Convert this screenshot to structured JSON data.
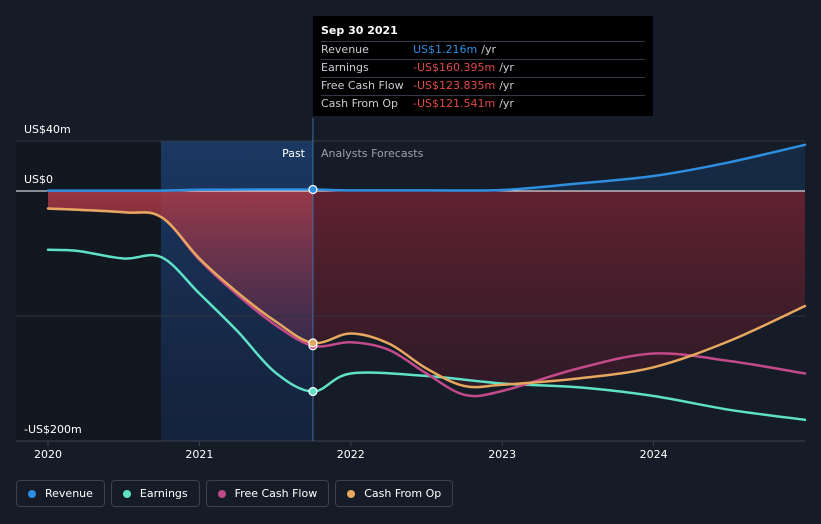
{
  "chart_data": {
    "type": "line",
    "y_axis": {
      "top_label": "US$40m",
      "zero_label": "US$0",
      "bottom_label": "-US$200m",
      "ylim": [
        -200,
        40
      ]
    },
    "x_axis": {
      "ticks": [
        "2020",
        "2021",
        "2022",
        "2023",
        "2024"
      ],
      "xlim": [
        2020.0,
        2025.0
      ]
    },
    "period_labels": {
      "past": "Past",
      "forecast": "Analysts Forecasts"
    },
    "past_divider_x": 2021.75,
    "series": [
      {
        "name": "Revenue",
        "color": "#2e8ee0",
        "points": [
          [
            2020.0,
            0.3
          ],
          [
            2020.75,
            0.3
          ],
          [
            2021.0,
            1.0
          ],
          [
            2021.5,
            1.2
          ],
          [
            2021.75,
            1.2
          ],
          [
            2022.0,
            0.5
          ],
          [
            2022.5,
            0.5
          ],
          [
            2023.0,
            0.8
          ],
          [
            2023.5,
            6.0
          ],
          [
            2024.0,
            12.0
          ],
          [
            2024.5,
            23.0
          ],
          [
            2025.0,
            37.0
          ]
        ]
      },
      {
        "name": "Earnings",
        "color": "#5ee1c7",
        "points": [
          [
            2020.0,
            -47.0
          ],
          [
            2020.2,
            -48.0
          ],
          [
            2020.5,
            -54.0
          ],
          [
            2020.75,
            -53.0
          ],
          [
            2021.0,
            -82.0
          ],
          [
            2021.25,
            -112.0
          ],
          [
            2021.5,
            -145.0
          ],
          [
            2021.75,
            -160.4
          ],
          [
            2022.0,
            -146.0
          ],
          [
            2022.5,
            -148.0
          ],
          [
            2023.0,
            -154.0
          ],
          [
            2023.5,
            -157.0
          ],
          [
            2024.0,
            -164.0
          ],
          [
            2024.5,
            -175.0
          ],
          [
            2025.0,
            -183.0
          ]
        ]
      },
      {
        "name": "Free Cash Flow",
        "color": "#c24a89",
        "points": [
          [
            2020.0,
            -14.0
          ],
          [
            2020.5,
            -17.0
          ],
          [
            2020.75,
            -21.0
          ],
          [
            2021.0,
            -55.0
          ],
          [
            2021.25,
            -83.0
          ],
          [
            2021.5,
            -107.0
          ],
          [
            2021.75,
            -123.8
          ],
          [
            2022.0,
            -121.0
          ],
          [
            2022.25,
            -127.0
          ],
          [
            2022.5,
            -146.0
          ],
          [
            2022.75,
            -163.0
          ],
          [
            2023.0,
            -160.0
          ],
          [
            2023.5,
            -142.0
          ],
          [
            2024.0,
            -130.0
          ],
          [
            2024.5,
            -136.0
          ],
          [
            2025.0,
            -146.0
          ]
        ]
      },
      {
        "name": "Cash From Op",
        "color": "#e6a85e",
        "points": [
          [
            2020.0,
            -14.0
          ],
          [
            2020.5,
            -17.0
          ],
          [
            2020.75,
            -21.0
          ],
          [
            2021.0,
            -54.0
          ],
          [
            2021.25,
            -81.0
          ],
          [
            2021.5,
            -104.0
          ],
          [
            2021.75,
            -121.5
          ],
          [
            2022.0,
            -114.0
          ],
          [
            2022.25,
            -122.0
          ],
          [
            2022.5,
            -142.0
          ],
          [
            2022.75,
            -156.0
          ],
          [
            2023.0,
            -155.0
          ],
          [
            2023.5,
            -150.0
          ],
          [
            2024.0,
            -141.0
          ],
          [
            2024.5,
            -120.0
          ],
          [
            2025.0,
            -92.0
          ]
        ]
      }
    ]
  },
  "tooltip": {
    "date": "Sep 30 2021",
    "rows": [
      {
        "label": "Revenue",
        "value": "US$1.216m",
        "unit": "/yr",
        "color": "#2e8ee0"
      },
      {
        "label": "Earnings",
        "value": "-US$160.395m",
        "unit": "/yr",
        "color": "#e04a4a"
      },
      {
        "label": "Free Cash Flow",
        "value": "-US$123.835m",
        "unit": "/yr",
        "color": "#e04a4a"
      },
      {
        "label": "Cash From Op",
        "value": "-US$121.541m",
        "unit": "/yr",
        "color": "#e04a4a"
      }
    ]
  },
  "legend": [
    {
      "label": "Revenue",
      "color": "#2e8ee0"
    },
    {
      "label": "Earnings",
      "color": "#5ee1c7"
    },
    {
      "label": "Free Cash Flow",
      "color": "#c24a89"
    },
    {
      "label": "Cash From Op",
      "color": "#e6a85e"
    }
  ]
}
